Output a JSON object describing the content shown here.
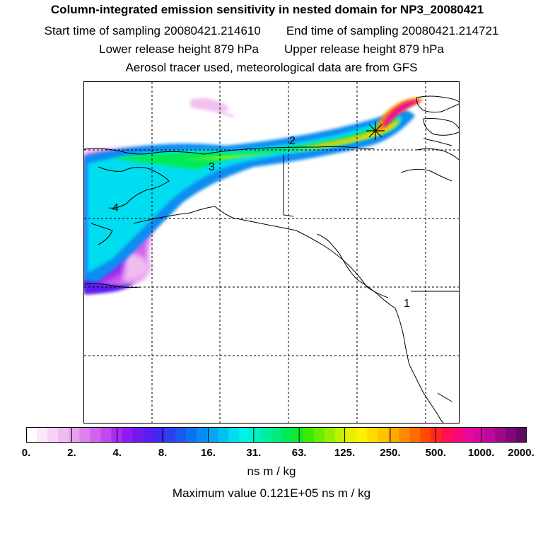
{
  "header": {
    "title": "Column-integrated emission sensitivity in nested domain for NP3_20080421",
    "start_time": "Start time of sampling 20080421.214610",
    "end_time": "End time of sampling 20080421.214721",
    "lower_height": "Lower release height  879 hPa",
    "upper_height": "Upper release height  879 hPa",
    "tracer_note": "Aerosol tracer used, meteorological data are from GFS"
  },
  "map": {
    "day_labels": [
      "1",
      "2",
      "3",
      "4"
    ],
    "grid": "dashed"
  },
  "colorbar": {
    "tick_labels": [
      "0.",
      "2.",
      "4.",
      "8.",
      "16.",
      "31.",
      "63.",
      "125.",
      "250.",
      "500.",
      "1000.",
      "2000."
    ],
    "colors": [
      "#ffffff",
      "#fbe8fb",
      "#f6d2f6",
      "#f0bcf0",
      "#e8a0ec",
      "#dc82ea",
      "#d064ec",
      "#c048ee",
      "#aa2cf2",
      "#8e1cf2",
      "#7218f0",
      "#5a1cf0",
      "#4028f0",
      "#2c40f2",
      "#1a58f2",
      "#0c72f2",
      "#088cf2",
      "#04a6f2",
      "#00c0f2",
      "#00dcf0",
      "#00f2e6",
      "#00f2c4",
      "#00eea2",
      "#00ec80",
      "#00ea58",
      "#10ea2a",
      "#3aec00",
      "#66ee00",
      "#94f000",
      "#c0f000",
      "#e6f000",
      "#fff000",
      "#ffdc00",
      "#ffc400",
      "#ffaa00",
      "#ff8c00",
      "#ff6c00",
      "#ff4800",
      "#ff2820",
      "#ff1050",
      "#f60878",
      "#e8089a",
      "#d6089e",
      "#c008a0",
      "#a0088a",
      "#800876",
      "#600862"
    ],
    "units": "ns m / kg"
  },
  "footer": {
    "maximum": "Maximum value  0.121E+05 ns m / kg"
  }
}
